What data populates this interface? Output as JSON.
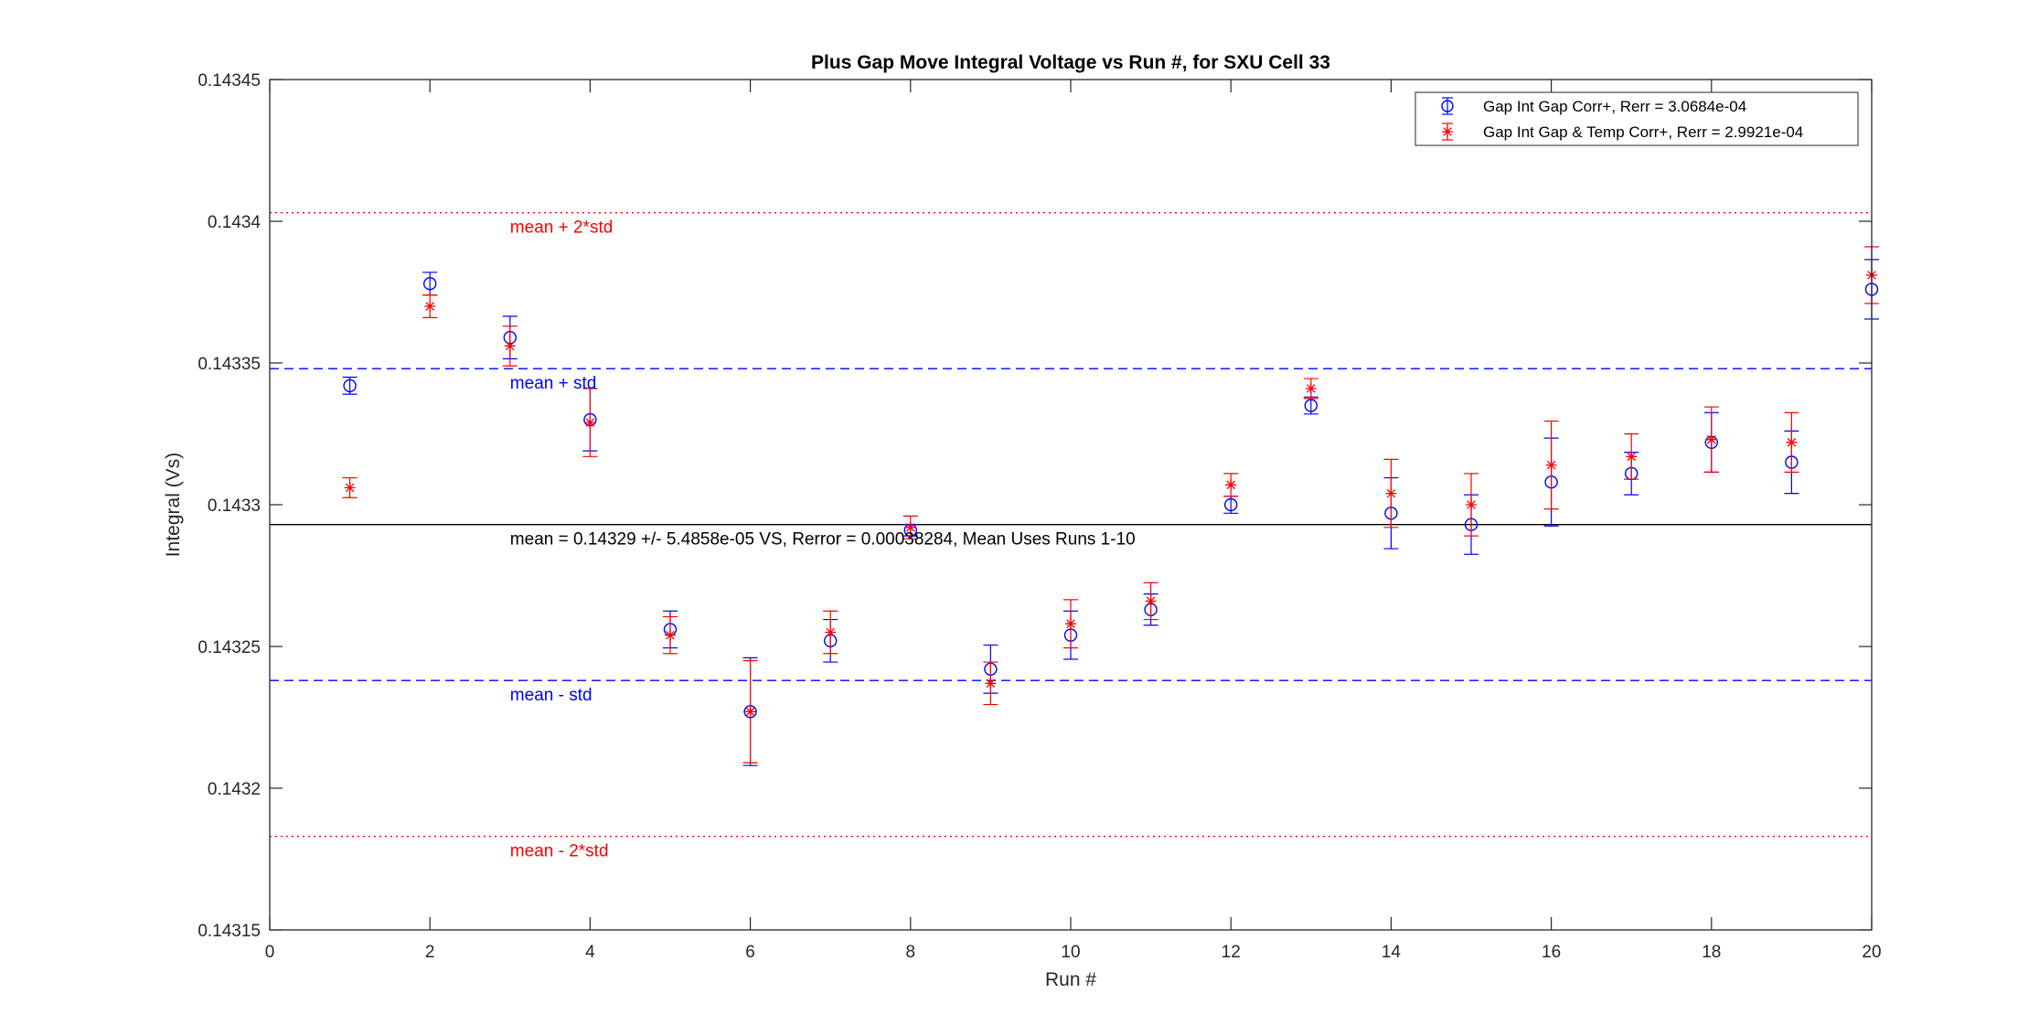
{
  "chart_data": {
    "type": "scatter",
    "title": "Plus Gap Move Integral Voltage vs Run #, for SXU Cell 33",
    "xlabel": "Run #",
    "ylabel": "Integral (Vs)",
    "xlim": [
      0,
      20
    ],
    "ylim": [
      0.14315,
      0.14345
    ],
    "xticks": [
      0,
      2,
      4,
      6,
      8,
      10,
      12,
      14,
      16,
      18,
      20
    ],
    "yticks": [
      0.14315,
      0.1432,
      0.14325,
      0.1433,
      0.14335,
      0.1434,
      0.14345
    ],
    "ytick_labels": [
      "0.14315",
      "0.1432",
      "0.14325",
      "0.1433",
      "0.14335",
      "0.1434",
      "0.14345"
    ],
    "grid": false,
    "legend_position": "top-right",
    "series": [
      {
        "name": "Gap Int Gap Corr+, Rerr = 3.0684e-04",
        "color": "#0000ff",
        "marker": "circle",
        "x": [
          1,
          2,
          3,
          4,
          5,
          6,
          7,
          8,
          9,
          10,
          11,
          12,
          13,
          14,
          15,
          16,
          17,
          18,
          19,
          20
        ],
        "y": [
          0.143342,
          0.143378,
          0.143359,
          0.14333,
          0.143256,
          0.143227,
          0.143252,
          0.143291,
          0.143242,
          0.143254,
          0.143263,
          0.1433,
          0.143335,
          0.143297,
          0.143293,
          0.143308,
          0.143311,
          0.143322,
          0.143315,
          0.143376
        ],
        "err": [
          3e-06,
          4e-06,
          7.5e-06,
          1.1e-05,
          6.5e-06,
          1.9e-05,
          7.5e-06,
          2e-06,
          8.5e-06,
          8.5e-06,
          5.5e-06,
          3e-06,
          3e-06,
          1.25e-05,
          1.05e-05,
          1.55e-05,
          7.5e-06,
          1.05e-05,
          1.1e-05,
          1.05e-05
        ]
      },
      {
        "name": "Gap Int Gap & Temp  Corr+, Rerr = 2.9921e-04",
        "color": "#ff0000",
        "marker": "star",
        "x": [
          1,
          2,
          3,
          4,
          5,
          6,
          7,
          8,
          9,
          10,
          11,
          12,
          13,
          14,
          15,
          16,
          17,
          18,
          19,
          20
        ],
        "y": [
          0.143306,
          0.14337,
          0.143356,
          0.143329,
          0.143254,
          0.143227,
          0.143255,
          0.143292,
          0.143237,
          0.143258,
          0.143266,
          0.143307,
          0.143341,
          0.143304,
          0.1433,
          0.143314,
          0.143317,
          0.143323,
          0.143322,
          0.143381
        ],
        "err": [
          3.5e-06,
          4e-06,
          7e-06,
          1.2e-05,
          6.5e-06,
          1.8e-05,
          7.5e-06,
          4e-06,
          7.5e-06,
          8.5e-06,
          6.5e-06,
          4e-06,
          3.5e-06,
          1.2e-05,
          1.1e-05,
          1.55e-05,
          8e-06,
          1.15e-05,
          1.05e-05,
          1e-05
        ]
      }
    ],
    "reference_lines": [
      {
        "label": "mean + 2*std",
        "y": 0.143403,
        "color": "#ff0000",
        "style": "dotted"
      },
      {
        "label": "mean + std",
        "y": 0.143348,
        "color": "#0000ff",
        "style": "dashed"
      },
      {
        "label": "mean = 0.14329 +/- 5.4858e-05 VS, Rerror = 0.00038284, Mean Uses Runs 1-10",
        "y": 0.143293,
        "color": "#000000",
        "style": "solid"
      },
      {
        "label": "mean - std",
        "y": 0.143238,
        "color": "#0000ff",
        "style": "dashed"
      },
      {
        "label": "mean - 2*std",
        "y": 0.143183,
        "color": "#ff0000",
        "style": "dotted"
      }
    ],
    "annotation_x": 3
  }
}
